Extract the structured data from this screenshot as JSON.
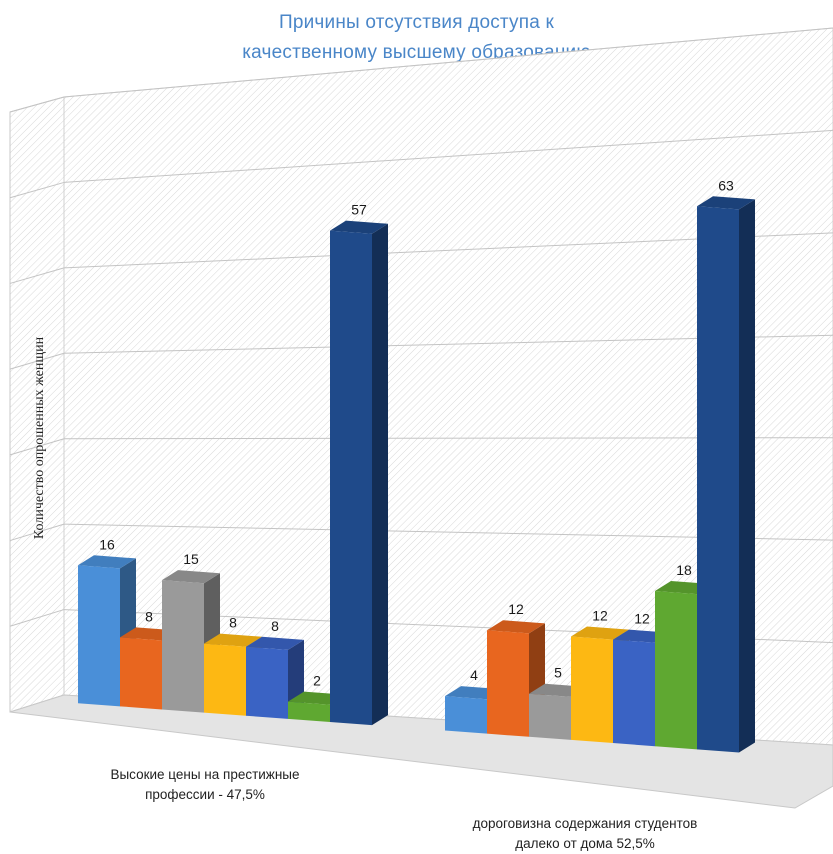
{
  "chart_data": {
    "type": "bar",
    "title_lines": [
      "Причины отсутствия доступа к",
      "качественному высшему образованию"
    ],
    "ylabel": "Количество опрошенных женщин",
    "xlabel": "",
    "categories": [
      [
        "Высокие цены на престижные",
        "профессии - 47,5%"
      ],
      [
        "дороговизна содержания студентов",
        "далеко от дома 52,5%"
      ]
    ],
    "colors": [
      "#4a8fd8",
      "#e8661f",
      "#9a9a9a",
      "#fdb813",
      "#3a63c4",
      "#5fa831",
      "#1f4a8a"
    ],
    "series": [
      {
        "values": [
          16,
          4
        ]
      },
      {
        "values": [
          8,
          12
        ]
      },
      {
        "values": [
          15,
          5
        ]
      },
      {
        "values": [
          8,
          12
        ]
      },
      {
        "values": [
          8,
          12
        ]
      },
      {
        "values": [
          2,
          18
        ]
      },
      {
        "values": [
          57,
          63
        ]
      }
    ],
    "ylim": [
      0,
      70
    ],
    "grid": true,
    "style": "3d-clustered-column"
  }
}
